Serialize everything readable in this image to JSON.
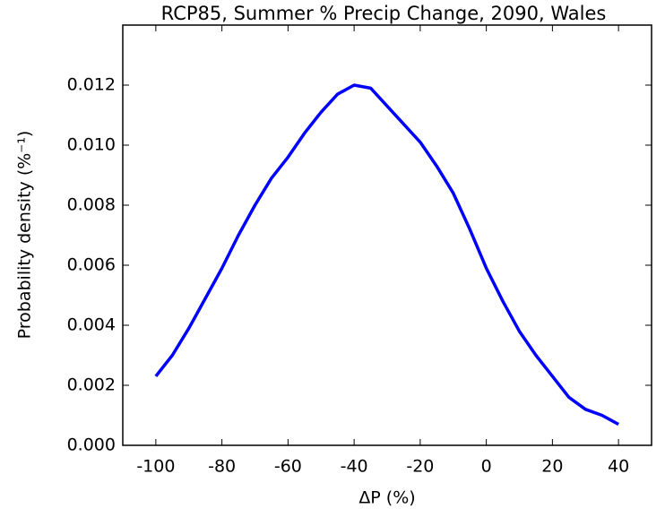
{
  "chart_data": {
    "type": "line",
    "title": "RCP85, Summer % Precip Change, 2090, Wales",
    "x_label": "ΔP (%)",
    "y_label": "Probability density (%⁻¹)",
    "x": [
      -100,
      -95,
      -90,
      -85,
      -80,
      -75,
      -70,
      -65,
      -60,
      -55,
      -50,
      -45,
      -40,
      -35,
      -30,
      -25,
      -20,
      -15,
      -10,
      -5,
      0,
      5,
      10,
      15,
      20,
      25,
      30,
      35,
      40
    ],
    "series": [
      {
        "name": "density",
        "color": "#0000ff",
        "values": [
          0.0023,
          0.003,
          0.0039,
          0.0049,
          0.0059,
          0.007,
          0.008,
          0.0089,
          0.0096,
          0.0104,
          0.0111,
          0.0117,
          0.012,
          0.0119,
          0.0113,
          0.0107,
          0.0101,
          0.0093,
          0.0084,
          0.0072,
          0.0059,
          0.0048,
          0.0038,
          0.003,
          0.0023,
          0.0016,
          0.0012,
          0.001,
          0.0007
        ]
      }
    ],
    "xlim": [
      -110,
      50
    ],
    "xticks": [
      -100,
      -80,
      -60,
      -40,
      -20,
      0,
      20,
      40
    ],
    "ylim": [
      0,
      0.014
    ],
    "yticks": [
      {
        "value": 0,
        "label": "0.000"
      },
      {
        "value": 0.002,
        "label": "0.002"
      },
      {
        "value": 0.004,
        "label": "0.004"
      },
      {
        "value": 0.006,
        "label": "0.006"
      },
      {
        "value": 0.008,
        "label": "0.008"
      },
      {
        "value": 0.01,
        "label": "0.010"
      },
      {
        "value": 0.012,
        "label": "0.012"
      }
    ],
    "grid": false
  }
}
